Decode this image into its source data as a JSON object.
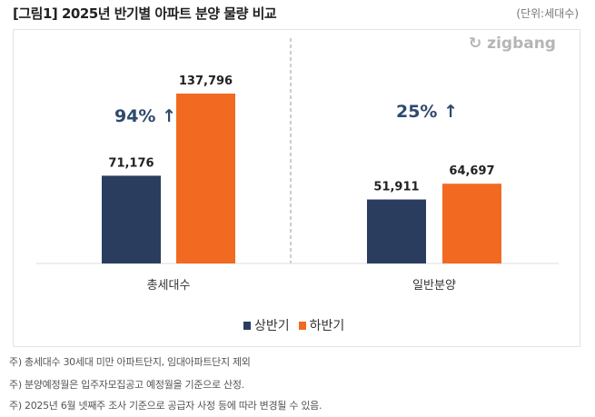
{
  "title": "[그림1] 2025년 반기별 아파트 분양 물량 비교",
  "unit": "(단위:세대수)",
  "logo": "zigbang",
  "notes": [
    "주) 총세대수 30세대 미만 아파트단지, 임대아파트단지 제외",
    "주) 분양예정월은 입주자모집공고 예정월을 기준으로 산정.",
    "주) 2025년 6월 넷째주 조사 기준으로 공급자 사정 등에 따라 변경될 수 있음."
  ],
  "chart_data": {
    "type": "bar",
    "title": "2025년 반기별 아파트 분양 물량 비교",
    "categories": [
      "총세대수",
      "일반분양"
    ],
    "series": [
      {
        "name": "상반기",
        "color": "#2b3d5e",
        "values": [
          71176,
          51911
        ]
      },
      {
        "name": "하반기",
        "color": "#f26a21",
        "values": [
          137796,
          64697
        ]
      }
    ],
    "value_labels": [
      [
        "71,176",
        "51,911"
      ],
      [
        "137,796",
        "64,697"
      ]
    ],
    "annotations": [
      "94% ↑",
      "25% ↑"
    ],
    "ylim": [
      0,
      137796
    ],
    "grid": false,
    "legend": "bottom-center"
  }
}
